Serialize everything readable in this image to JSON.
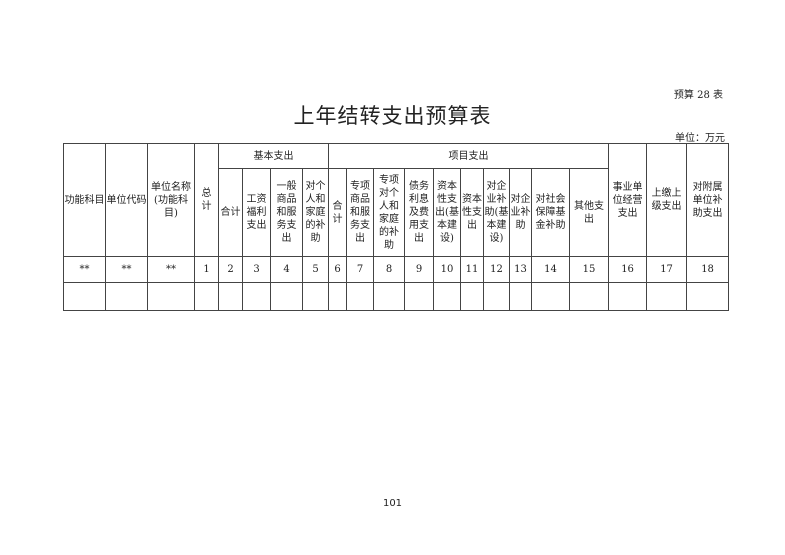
{
  "form_number": "预算 28 表",
  "title": "上年结转支出预算表",
  "unit": "单位：万元",
  "table": {
    "group_basic": "基本支出",
    "group_project": "项目支出",
    "columns": [
      "功能科目",
      "单位代码",
      "单位名称\n(功能科\n目)",
      "总\n计",
      "合计",
      "工资\n福利\n支出",
      "一般\n商品\n和服\n务支\n出",
      "对个\n人和\n家庭\n的补\n助",
      "合\n计",
      "专项\n商品\n和服\n务支\n出",
      "专项\n对个\n人和\n家庭\n的补\n助",
      "债务\n利息\n及费\n用支\n出",
      "资本\n性支\n出(基\n本建\n设)",
      "资本\n性支\n出",
      "对企\n业补\n助(基\n本建\n设)",
      "对企\n业补\n助",
      "对社会\n保障基\n金补助",
      "其他支\n出",
      "事业单\n位经营\n支出",
      "上缴上\n级支出",
      "对附属\n单位补\n助支出"
    ],
    "number_row": [
      "**",
      "**",
      "**",
      "1",
      "2",
      "3",
      "4",
      "5",
      "6",
      "7",
      "8",
      "9",
      "10",
      "11",
      "12",
      "13",
      "14",
      "15",
      "16",
      "17",
      "18"
    ]
  },
  "page_number": "101"
}
